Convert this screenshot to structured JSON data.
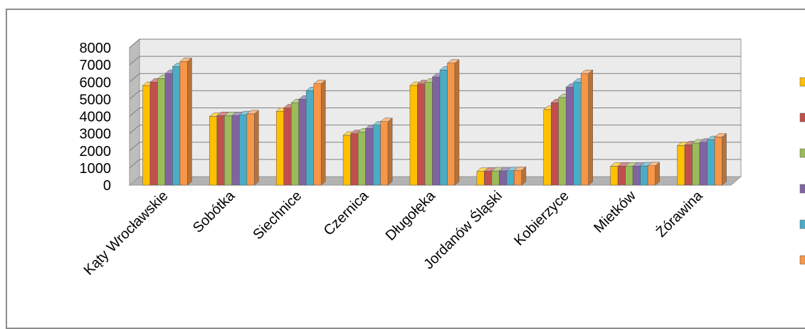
{
  "chart_data": {
    "type": "bar",
    "categories": [
      "Kąty Wrocławskie",
      "Sobótka",
      "Siechnice",
      "Czernica",
      "Długołęka",
      "Jordanów Śląski",
      "Kobierzyce",
      "Mietków",
      "Żórawina"
    ],
    "series": [
      {
        "color": "#FFC000",
        "values": [
          5800,
          4000,
          4300,
          2900,
          5800,
          800,
          4400,
          1100,
          2300
        ]
      },
      {
        "color": "#C0504D",
        "values": [
          6000,
          4050,
          4500,
          3000,
          5900,
          820,
          4800,
          1110,
          2350
        ]
      },
      {
        "color": "#9BBB59",
        "values": [
          6200,
          4050,
          4800,
          3100,
          6000,
          830,
          5100,
          1110,
          2450
        ]
      },
      {
        "color": "#8064A2",
        "values": [
          6500,
          4050,
          5000,
          3300,
          6300,
          830,
          5700,
          1110,
          2500
        ]
      },
      {
        "color": "#4BACC6",
        "values": [
          6900,
          4100,
          5500,
          3500,
          6700,
          840,
          6000,
          1120,
          2650
        ]
      },
      {
        "color": "#F79646",
        "values": [
          7200,
          4150,
          5900,
          3700,
          7100,
          860,
          6500,
          1130,
          2800
        ]
      }
    ],
    "yticks": [
      "0",
      "1000",
      "2000",
      "3000",
      "4000",
      "5000",
      "6000",
      "7000",
      "8000"
    ],
    "ylim": [
      0,
      8000
    ],
    "legend_position": "right",
    "grid": true
  }
}
